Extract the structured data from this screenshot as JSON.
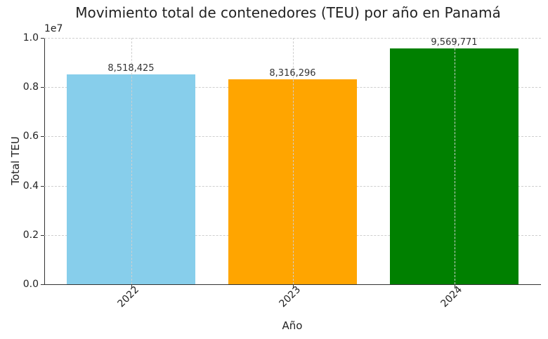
{
  "chart_data": {
    "type": "bar",
    "title": "Movimiento total de contenedores (TEU) por año en Panamá",
    "xlabel": "Año",
    "ylabel": "Total TEU",
    "y_offset_label": "1e7",
    "categories": [
      "2022",
      "2023",
      "2024"
    ],
    "values": [
      8518425,
      8316296,
      9569771
    ],
    "value_labels": [
      "8,518,425",
      "8,316,296",
      "9,569,771"
    ],
    "colors": [
      "#87ceeb",
      "#ffa500",
      "#008000"
    ],
    "ylim": [
      0,
      10000000
    ],
    "yticks": [
      "0.0",
      "0.2",
      "0.4",
      "0.6",
      "0.8",
      "1.0"
    ],
    "grid": true,
    "legend": null
  }
}
